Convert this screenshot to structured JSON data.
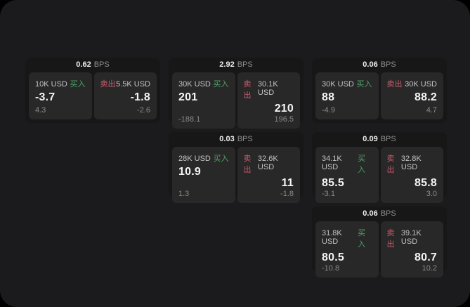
{
  "colors": {
    "panel-bg": "#1b1b1d",
    "card-bg": "#171717",
    "tile-bg": "#282828",
    "buy": "#4fa168",
    "sell": "#c75a6b"
  },
  "labels": {
    "bps_unit": "BPS",
    "buy": "买入",
    "sell": "卖出"
  },
  "cards": [
    {
      "bps": "0.62",
      "buy": {
        "amount": "10K USD",
        "price": "-3.7",
        "delta": "4.3"
      },
      "sell": {
        "amount": "5.5K USD",
        "price": "-1.8",
        "delta": "-2.6"
      }
    },
    {
      "bps": "2.92",
      "buy": {
        "amount": "30K USD",
        "price": "201",
        "delta": "-188.1"
      },
      "sell": {
        "amount": "30.1K USD",
        "price": "210",
        "delta": "196.5"
      }
    },
    {
      "bps": "0.06",
      "buy": {
        "amount": "30K USD",
        "price": "88",
        "delta": "-4.9"
      },
      "sell": {
        "amount": "30K USD",
        "price": "88.2",
        "delta": "4.7"
      }
    },
    {
      "bps": "0.03",
      "buy": {
        "amount": "28K USD",
        "price": "10.9",
        "delta": "1.3"
      },
      "sell": {
        "amount": "32.6K USD",
        "price": "11",
        "delta": "-1.8"
      }
    },
    {
      "bps": "0.09",
      "buy": {
        "amount": "34.1K USD",
        "price": "85.5",
        "delta": "-3.1"
      },
      "sell": {
        "amount": "32.8K USD",
        "price": "85.8",
        "delta": "3.0"
      }
    },
    {
      "bps": "0.06",
      "buy": {
        "amount": "31.8K USD",
        "price": "80.5",
        "delta": "-10.8"
      },
      "sell": {
        "amount": "39.1K USD",
        "price": "80.7",
        "delta": "10.2"
      }
    }
  ]
}
